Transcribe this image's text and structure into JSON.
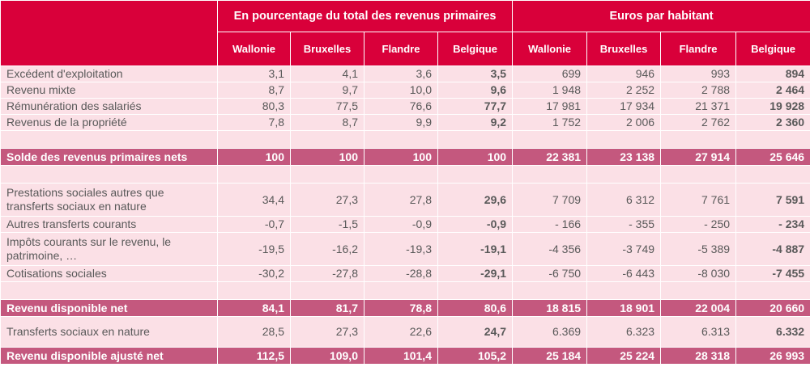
{
  "header": {
    "group_pct": "En pourcentage du total des revenus primaires",
    "group_eur": "Euros par habitant",
    "columns": [
      "Wallonie",
      "Bruxelles",
      "Flandre",
      "Belgique",
      "Wallonie",
      "Bruxelles",
      "Flandre",
      "Belgique"
    ]
  },
  "rows": [
    {
      "kind": "data",
      "label": [
        "Excédent d'exploitation"
      ],
      "values": [
        "3,1",
        "4,1",
        "3,6",
        "3,5",
        "699",
        "946",
        "993",
        "894"
      ]
    },
    {
      "kind": "data",
      "label": [
        "Revenu mixte"
      ],
      "values": [
        "8,7",
        "9,7",
        "10,0",
        "9,6",
        "1 948",
        "2 252",
        "2 788",
        "2 464"
      ]
    },
    {
      "kind": "data",
      "label": [
        "Rémunération des salariés"
      ],
      "values": [
        "80,3",
        "77,5",
        "76,6",
        "77,7",
        "17 981",
        "17 934",
        "21 371",
        "19 928"
      ]
    },
    {
      "kind": "data",
      "label": [
        "Revenus de la propriété"
      ],
      "values": [
        "7,8",
        "8,7",
        "9,9",
        "9,2",
        "1 752",
        "2 006",
        "2 762",
        "2 360"
      ]
    },
    {
      "kind": "blank"
    },
    {
      "kind": "sum",
      "label": [
        "Solde des revenus primaires nets"
      ],
      "values": [
        "100",
        "100",
        "100",
        "100",
        "22 381",
        "23 138",
        "27 914",
        "25 646"
      ]
    },
    {
      "kind": "blank"
    },
    {
      "kind": "data",
      "tall": true,
      "label": [
        "Prestations sociales autres que",
        "transferts sociaux en nature"
      ],
      "values": [
        "34,4",
        "27,3",
        "27,8",
        "29,6",
        "7 709",
        "6 312",
        "7 761",
        "7 591"
      ]
    },
    {
      "kind": "data",
      "label": [
        "Autres transferts courants"
      ],
      "values": [
        "-0,7",
        "-1,5",
        "-0,9",
        "-0,9",
        "- 166",
        "- 355",
        "- 250",
        "- 234"
      ]
    },
    {
      "kind": "data",
      "tall": true,
      "label": [
        "Impôts courants sur le revenu, le",
        "patrimoine, …"
      ],
      "values": [
        "-19,5",
        "-16,2",
        "-19,3",
        "-19,1",
        "-4 356",
        "-3 749",
        "-5 389",
        "-4 887"
      ]
    },
    {
      "kind": "data",
      "label": [
        "Cotisations sociales"
      ],
      "values": [
        "-30,2",
        "-27,8",
        "-28,8",
        "-29,1",
        "-6 750",
        "-6 443",
        "-8 030",
        "-7 455"
      ]
    },
    {
      "kind": "blank"
    },
    {
      "kind": "sum",
      "label": [
        "Revenu disponible net"
      ],
      "values": [
        "84,1",
        "81,7",
        "78,8",
        "80,6",
        "18 815",
        "18 901",
        "22 004",
        "20 660"
      ]
    },
    {
      "kind": "data",
      "mid": true,
      "label": [
        "Transferts sociaux en nature"
      ],
      "values": [
        "28,5",
        "27,3",
        "22,6",
        "24,7",
        "6.369",
        "6.323",
        "6.313",
        "6.332"
      ]
    },
    {
      "kind": "sum",
      "label": [
        "Revenu disponible ajusté net"
      ],
      "values": [
        "112,5",
        "109,0",
        "101,4",
        "105,2",
        "25 184",
        "25 224",
        "28 318",
        "26 993"
      ]
    }
  ]
}
